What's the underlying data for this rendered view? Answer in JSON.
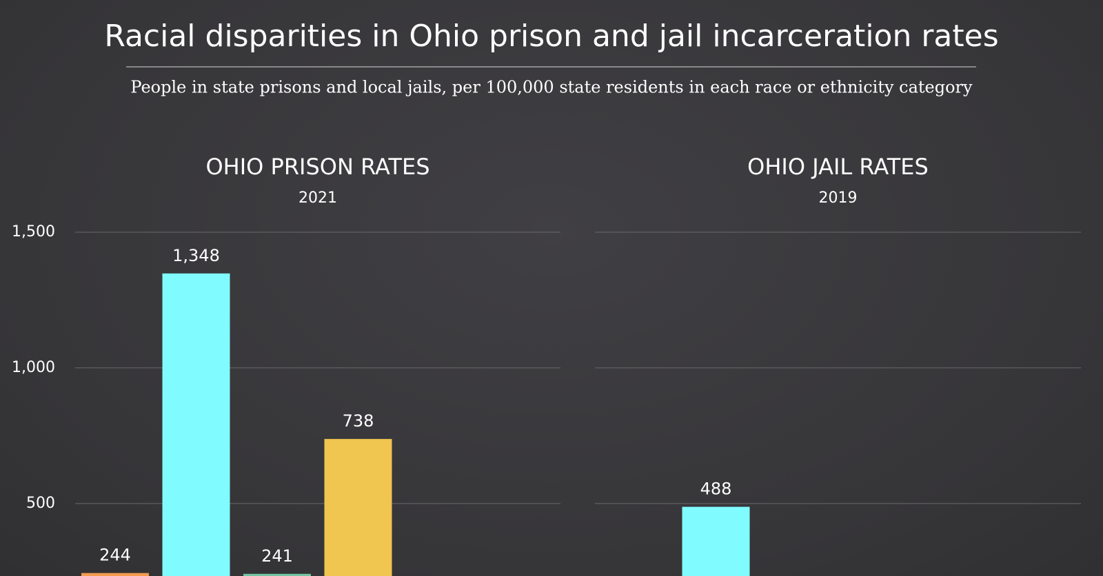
{
  "title": "Racial disparities in Ohio prison and jail incarceration rates",
  "subtitle": "People in state prisons and local jails, per 100,000 state residents in each race or ethnicity category",
  "chart_data": [
    {
      "type": "bar",
      "title": "OHIO PRISON RATES",
      "subtitle": "2021",
      "categories": [
        null,
        null,
        null,
        null
      ],
      "values": [
        244,
        1348,
        241,
        738
      ],
      "value_labels": [
        "244",
        "1,348",
        "241",
        "738"
      ],
      "colors": [
        "#f29b4f",
        "#80fbff",
        "#74c4a4",
        "#f0c550"
      ],
      "ylim": [
        233,
        1500
      ],
      "yticks": [
        500,
        {
          "value": 1000,
          "label": "1,000"
        },
        {
          "value": 1500,
          "label": "1,500"
        }
      ],
      "grid": true
    },
    {
      "type": "bar",
      "title": "OHIO JAIL RATES",
      "subtitle": "2019",
      "categories": [
        null,
        null,
        null,
        null
      ],
      "values": [
        null,
        488,
        null,
        null
      ],
      "colors": [
        "#f29b4f",
        "#80fbff",
        "#74c4a4",
        "#f0c550"
      ],
      "ylim": [
        233,
        1500
      ],
      "yticks": [
        500,
        1000,
        1500
      ],
      "grid": true
    }
  ]
}
